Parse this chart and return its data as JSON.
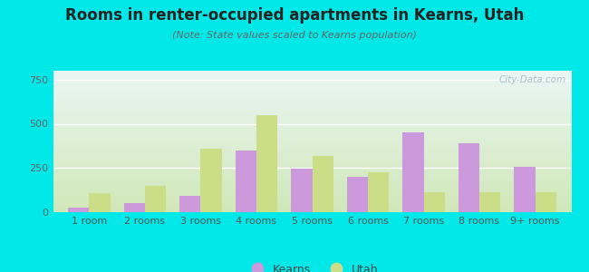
{
  "title": "Rooms in renter-occupied apartments in Kearns, Utah",
  "subtitle": "(Note: State values scaled to Kearns population)",
  "categories": [
    "1 room",
    "2 rooms",
    "3 rooms",
    "4 rooms",
    "5 rooms",
    "6 rooms",
    "7 rooms",
    "8 rooms",
    "9+ rooms"
  ],
  "kearns_values": [
    25,
    50,
    90,
    350,
    245,
    200,
    450,
    390,
    255
  ],
  "utah_values": [
    110,
    150,
    360,
    550,
    320,
    225,
    115,
    115,
    115
  ],
  "kearns_color": "#cc99dd",
  "utah_color": "#ccdd88",
  "background_outer": "#00e8e8",
  "background_inner_topleft": "#e8f8f5",
  "background_inner_bottomleft": "#d4ecc0",
  "ylim": [
    0,
    800
  ],
  "yticks": [
    0,
    250,
    500,
    750
  ],
  "bar_width": 0.38,
  "legend_kearns": "Kearns",
  "legend_utah": "Utah",
  "watermark": "City-Data.com",
  "title_fontsize": 12,
  "subtitle_fontsize": 8,
  "tick_fontsize": 8
}
